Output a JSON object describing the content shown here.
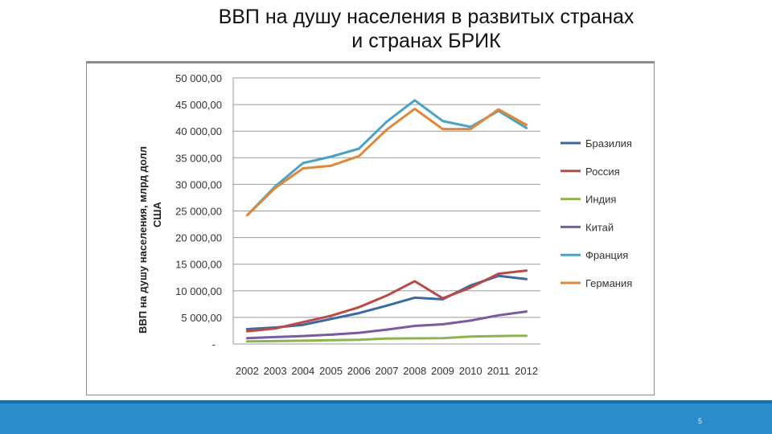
{
  "slide": {
    "title_line1": "ВВП на душу населения в развитых странах",
    "title_line2": "и странах БРИК",
    "page_number": "5",
    "footer_color": "#2b8cca"
  },
  "chart_data": {
    "type": "line",
    "title": "",
    "xlabel": "",
    "ylabel_line1": "ВВП на душу населения, млрд долл",
    "ylabel_line2": "США",
    "x": [
      "2002",
      "2003",
      "2004",
      "2005",
      "2006",
      "2007",
      "2008",
      "2009",
      "2010",
      "2011",
      "2012"
    ],
    "ylim": [
      0,
      50000
    ],
    "y_ticks": [
      {
        "value": 0,
        "label": "-"
      },
      {
        "value": 5000,
        "label": "5 000,00"
      },
      {
        "value": 10000,
        "label": "10 000,00"
      },
      {
        "value": 15000,
        "label": "15 000,00"
      },
      {
        "value": 20000,
        "label": "20 000,00"
      },
      {
        "value": 25000,
        "label": "25 000,00"
      },
      {
        "value": 30000,
        "label": "30 000,00"
      },
      {
        "value": 35000,
        "label": "35 000,00"
      },
      {
        "value": 40000,
        "label": "40 000,00"
      },
      {
        "value": 45000,
        "label": "45 000,00"
      },
      {
        "value": 50000,
        "label": "50 000,00"
      }
    ],
    "grid": true,
    "legend_position": "right",
    "series": [
      {
        "name": "Бразилия",
        "color": "#3b6aa3",
        "values": [
          2800,
          3100,
          3600,
          4700,
          5800,
          7200,
          8700,
          8400,
          11000,
          12800,
          12200
        ]
      },
      {
        "name": "Россия",
        "color": "#b94a48",
        "values": [
          2400,
          2900,
          4100,
          5300,
          6900,
          9100,
          11800,
          8600,
          10600,
          13200,
          13800
        ]
      },
      {
        "name": "Индия",
        "color": "#8db451",
        "values": [
          480,
          540,
          620,
          720,
          800,
          1030,
          1050,
          1100,
          1400,
          1500,
          1550
        ]
      },
      {
        "name": "Китай",
        "color": "#7a5aa0",
        "values": [
          1100,
          1300,
          1500,
          1750,
          2100,
          2700,
          3400,
          3700,
          4400,
          5400,
          6100
        ]
      },
      {
        "name": "Франция",
        "color": "#4ba3c3",
        "values": [
          24200,
          29600,
          34000,
          35200,
          36700,
          41800,
          45800,
          41900,
          40800,
          43800,
          40600
        ]
      },
      {
        "name": "Германия",
        "color": "#e0883a",
        "values": [
          24200,
          29300,
          33000,
          33500,
          35300,
          40300,
          44200,
          40400,
          40400,
          44100,
          41200
        ]
      }
    ]
  }
}
